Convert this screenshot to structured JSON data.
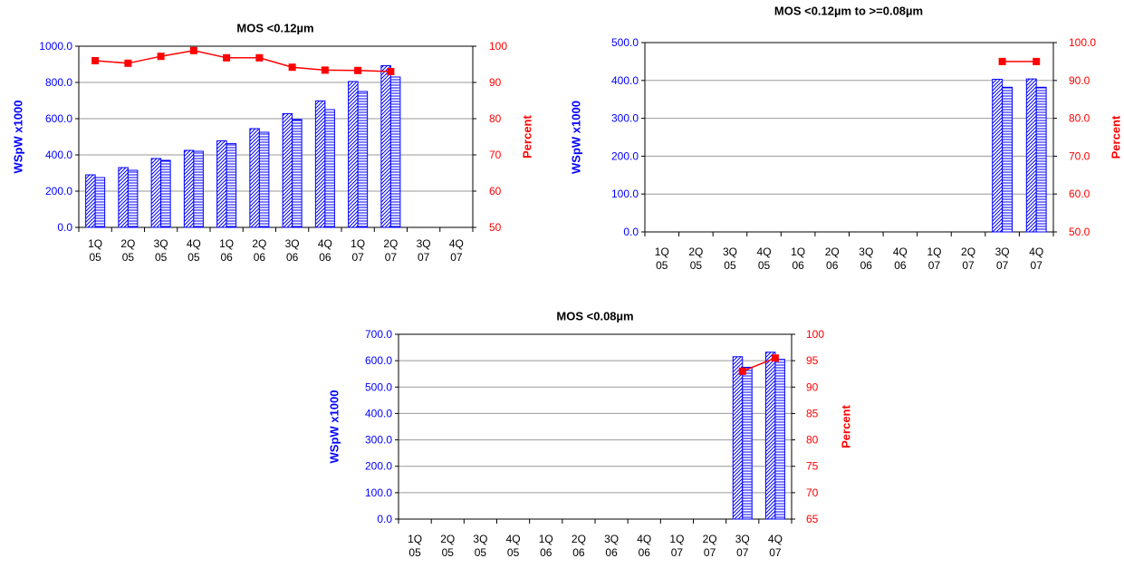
{
  "chart_data": [
    {
      "type": "bar",
      "title": "MOS <0.12µm",
      "categories": [
        [
          "1Q",
          "05"
        ],
        [
          "2Q",
          "05"
        ],
        [
          "3Q",
          "05"
        ],
        [
          "4Q",
          "05"
        ],
        [
          "1Q",
          "06"
        ],
        [
          "2Q",
          "06"
        ],
        [
          "3Q",
          "06"
        ],
        [
          "4Q",
          "06"
        ],
        [
          "1Q",
          "07"
        ],
        [
          "2Q",
          "07"
        ],
        [
          "3Q",
          "07"
        ],
        [
          "4Q",
          "07"
        ]
      ],
      "ylabel": "WSpW x1000",
      "y2label": "Percent",
      "ylim": [
        0,
        1000
      ],
      "y2lim": [
        50,
        100
      ],
      "yticks": [
        "0.0",
        "200.0",
        "400.0",
        "600.0",
        "800.0",
        "1000.0"
      ],
      "y2ticks": [
        "50",
        "60",
        "70",
        "80",
        "90",
        "100"
      ],
      "left_axis_color": "#0000ff",
      "right_axis_color": "#ff0000",
      "grid": true,
      "series": [
        {
          "kind": "bar",
          "pattern": "diagonal",
          "color": "#0000ff",
          "values": [
            290,
            330,
            380,
            425,
            478,
            545,
            628,
            698,
            805,
            893,
            null,
            null
          ]
        },
        {
          "kind": "bar",
          "pattern": "horizontal",
          "color": "#0000ff",
          "values": [
            275,
            315,
            370,
            420,
            462,
            525,
            595,
            650,
            750,
            830,
            null,
            null
          ]
        },
        {
          "kind": "line",
          "axis": "right",
          "color": "#ff0000",
          "values": [
            96.0,
            95.3,
            97.2,
            98.8,
            96.8,
            96.8,
            94.2,
            93.4,
            93.3,
            93.0,
            null,
            null
          ]
        }
      ]
    },
    {
      "type": "bar",
      "title": "MOS <0.12µm to >=0.08µm",
      "categories": [
        [
          "1Q",
          "05"
        ],
        [
          "2Q",
          "05"
        ],
        [
          "3Q",
          "05"
        ],
        [
          "4Q",
          "05"
        ],
        [
          "1Q",
          "06"
        ],
        [
          "2Q",
          "06"
        ],
        [
          "3Q",
          "06"
        ],
        [
          "4Q",
          "06"
        ],
        [
          "1Q",
          "07"
        ],
        [
          "2Q",
          "07"
        ],
        [
          "3Q",
          "07"
        ],
        [
          "4Q",
          "07"
        ]
      ],
      "ylabel": "WSpW x1000",
      "y2label": "Percent",
      "ylim": [
        0,
        500
      ],
      "y2lim": [
        50,
        100
      ],
      "yticks": [
        "0.0",
        "100.0",
        "200.0",
        "300.0",
        "400.0",
        "500.0"
      ],
      "y2ticks": [
        "50.0",
        "60.0",
        "70.0",
        "80.0",
        "90.0",
        "100.0"
      ],
      "left_axis_color": "#0000ff",
      "right_axis_color": "#ff0000",
      "grid": true,
      "series": [
        {
          "kind": "bar",
          "pattern": "diagonal",
          "color": "#0000ff",
          "values": [
            null,
            null,
            null,
            null,
            null,
            null,
            null,
            null,
            null,
            null,
            403,
            404
          ]
        },
        {
          "kind": "bar",
          "pattern": "horizontal",
          "color": "#0000ff",
          "values": [
            null,
            null,
            null,
            null,
            null,
            null,
            null,
            null,
            null,
            null,
            382,
            382
          ]
        },
        {
          "kind": "line",
          "axis": "right",
          "color": "#ff0000",
          "values": [
            null,
            null,
            null,
            null,
            null,
            null,
            null,
            null,
            null,
            null,
            95.0,
            95.0
          ]
        }
      ]
    },
    {
      "type": "bar",
      "title": "MOS <0.08µm",
      "categories": [
        [
          "1Q",
          "05"
        ],
        [
          "2Q",
          "05"
        ],
        [
          "3Q",
          "05"
        ],
        [
          "4Q",
          "05"
        ],
        [
          "1Q",
          "06"
        ],
        [
          "2Q",
          "06"
        ],
        [
          "3Q",
          "06"
        ],
        [
          "4Q",
          "06"
        ],
        [
          "1Q",
          "07"
        ],
        [
          "2Q",
          "07"
        ],
        [
          "3Q",
          "07"
        ],
        [
          "4Q",
          "07"
        ]
      ],
      "ylabel": "WSpW x1000",
      "y2label": "Percent",
      "ylim": [
        0,
        700
      ],
      "y2lim": [
        65,
        100
      ],
      "yticks": [
        "0.0",
        "100.0",
        "200.0",
        "300.0",
        "400.0",
        "500.0",
        "600.0",
        "700.0"
      ],
      "y2ticks": [
        "65",
        "70",
        "75",
        "80",
        "85",
        "90",
        "95",
        "100"
      ],
      "left_axis_color": "#0000ff",
      "right_axis_color": "#ff0000",
      "grid": true,
      "series": [
        {
          "kind": "bar",
          "pattern": "diagonal",
          "color": "#0000ff",
          "values": [
            null,
            null,
            null,
            null,
            null,
            null,
            null,
            null,
            null,
            null,
            615,
            632
          ]
        },
        {
          "kind": "bar",
          "pattern": "horizontal",
          "color": "#0000ff",
          "values": [
            null,
            null,
            null,
            null,
            null,
            null,
            null,
            null,
            null,
            null,
            575,
            605
          ]
        },
        {
          "kind": "line",
          "axis": "right",
          "color": "#ff0000",
          "values": [
            null,
            null,
            null,
            null,
            null,
            null,
            null,
            null,
            null,
            null,
            93.0,
            95.5
          ]
        }
      ]
    }
  ]
}
